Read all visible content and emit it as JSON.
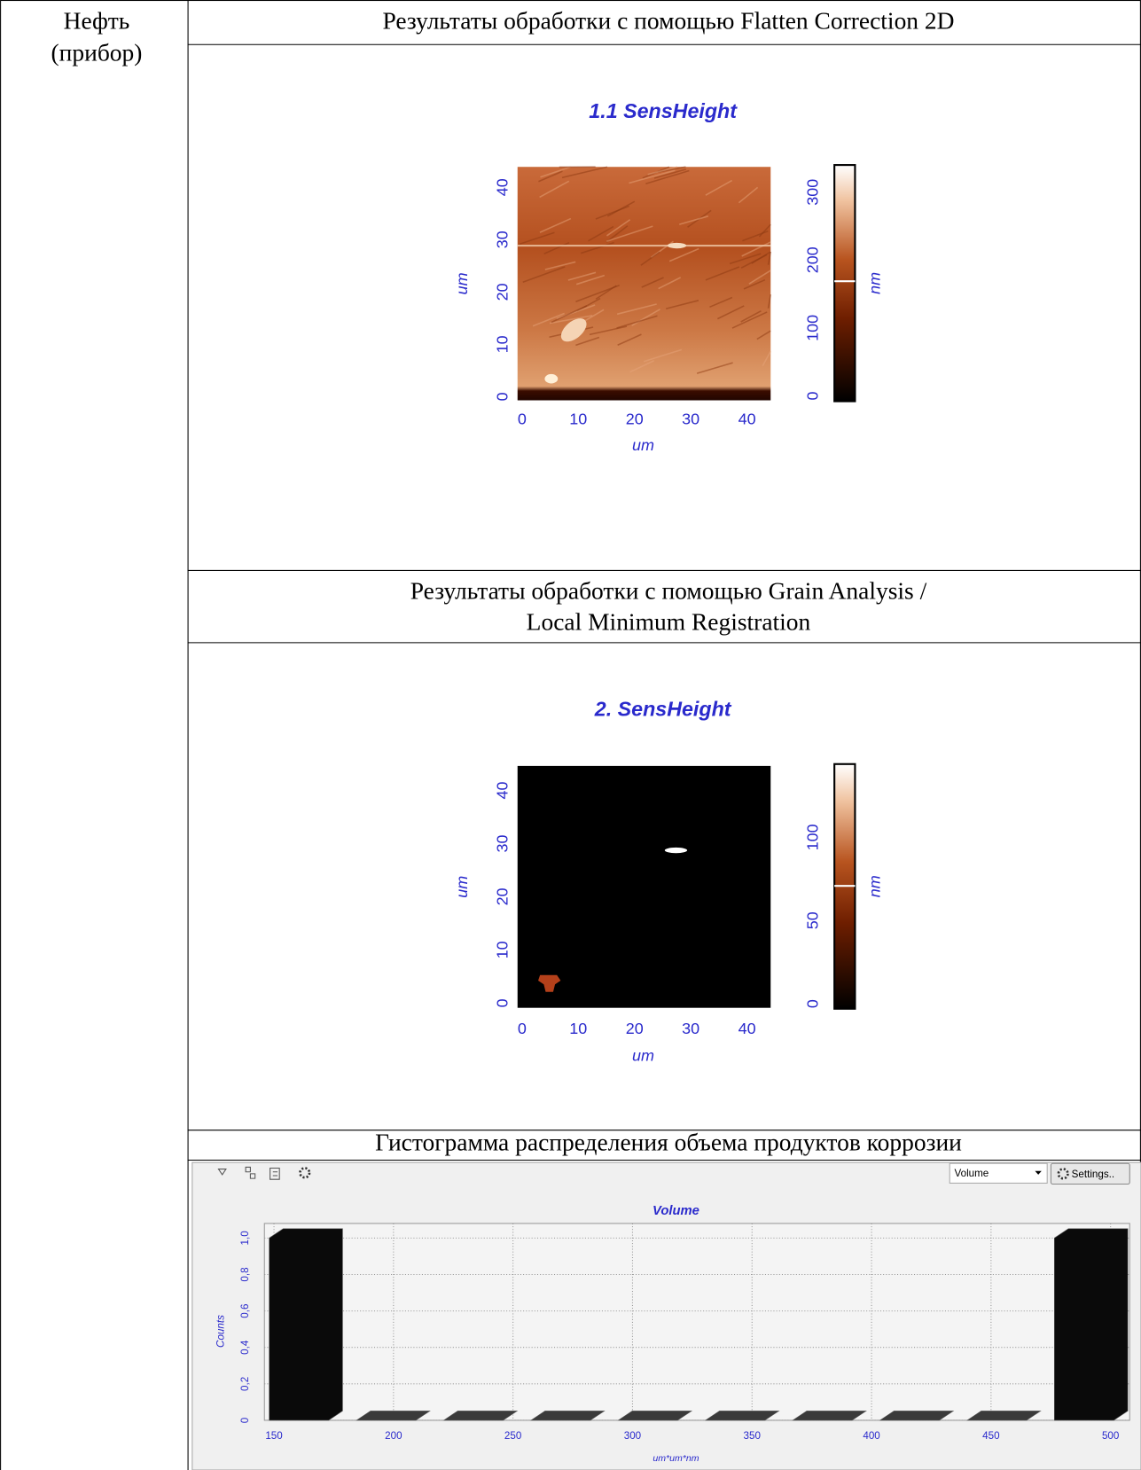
{
  "table": {
    "row_label": [
      "Нефть",
      "(прибор)"
    ],
    "sections": [
      {
        "heading": [
          "Результаты обработки с помощью Flatten Correction 2D"
        ],
        "map": {
          "title": "1.1 SensHeight",
          "x_label": "um",
          "y_label": "um",
          "xlim": [
            -0.8,
            44.2
          ],
          "xticks": [
            0,
            10,
            20,
            30,
            40
          ],
          "ylim": [
            -0.7,
            43.9
          ],
          "yticks": [
            0,
            10,
            20,
            30,
            40
          ],
          "colorbar": {
            "label": "nm",
            "lim": [
              -8,
              340
            ],
            "ticks": [
              0,
              100,
              200,
              300
            ]
          }
        }
      },
      {
        "heading": [
          "Результаты обработки с помощью Grain Analysis /",
          "Local Minimum Registration"
        ],
        "map": {
          "title": "2. SensHeight",
          "x_label": "um",
          "y_label": "um",
          "xlim": [
            -0.8,
            44.2
          ],
          "xticks": [
            0,
            10,
            20,
            30,
            40
          ],
          "ylim": [
            -0.9,
            44.6
          ],
          "yticks": [
            0,
            10,
            20,
            30,
            40
          ],
          "colorbar": {
            "label": "nm",
            "lim": [
              -3,
              144
            ],
            "ticks": [
              0,
              50,
              100
            ]
          }
        }
      },
      {
        "heading": [
          "Гистограмма распределения объема продуктов коррозии"
        ],
        "histogram": {
          "type": "histogram",
          "selector": "Volume",
          "button": "Settings..",
          "title": "Volume",
          "x_label": "um*um*nm",
          "y_label": "Counts",
          "bins": [
            148,
            184.5,
            221,
            257.5,
            294,
            330.5,
            367,
            403.5,
            440,
            476.5,
            513
          ],
          "counts": [
            1,
            0,
            0,
            0,
            0,
            0,
            0,
            0,
            0,
            1
          ],
          "xlim": [
            146,
            508
          ],
          "xticks": [
            150,
            200,
            250,
            300,
            350,
            400,
            450,
            500
          ],
          "ylim": [
            0,
            1.08
          ],
          "yticks": [
            0,
            {
              "value": 0.2,
              "label": "0,2"
            },
            {
              "value": 0.4,
              "label": "0,4"
            },
            {
              "value": 0.6,
              "label": "0,6"
            },
            {
              "value": 0.8,
              "label": "0,8"
            },
            {
              "value": 1.0,
              "label": "1,0"
            }
          ],
          "grid": true
        }
      }
    ]
  }
}
